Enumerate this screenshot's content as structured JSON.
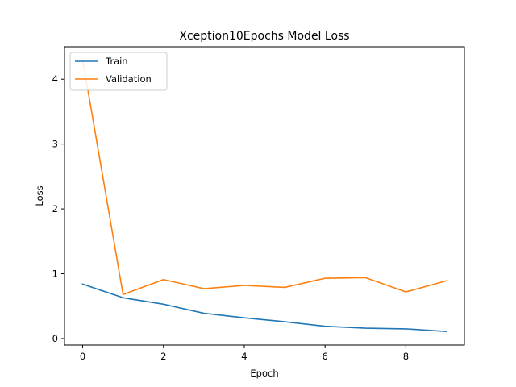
{
  "chart_data": {
    "type": "line",
    "title": "Xception10Epochs Model Loss",
    "xlabel": "Epoch",
    "ylabel": "Loss",
    "x": [
      0,
      1,
      2,
      3,
      4,
      5,
      6,
      7,
      8,
      9
    ],
    "xlim": [
      -0.45,
      9.45
    ],
    "ylim": [
      -0.1,
      4.5
    ],
    "xticks": [
      0,
      2,
      4,
      6,
      8
    ],
    "yticks": [
      0,
      1,
      2,
      3,
      4
    ],
    "grid": false,
    "legend_position": "upper-left",
    "series": [
      {
        "name": "Train",
        "color": "#1f77b4",
        "values": [
          0.84,
          0.63,
          0.53,
          0.39,
          0.32,
          0.26,
          0.19,
          0.16,
          0.15,
          0.11
        ]
      },
      {
        "name": "Validation",
        "color": "#ff7f0e",
        "values": [
          4.3,
          0.68,
          0.91,
          0.77,
          0.82,
          0.79,
          0.93,
          0.94,
          0.72,
          0.89
        ]
      }
    ]
  }
}
